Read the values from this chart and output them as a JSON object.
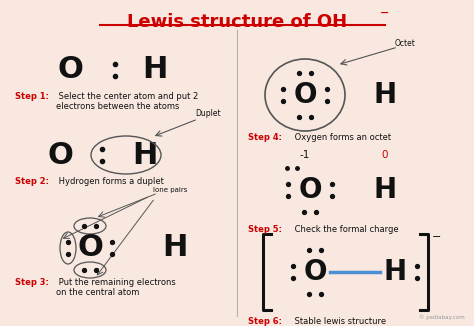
{
  "title": "Lewis structure of OH",
  "title_sup": "−",
  "bg": "#f8e8e0",
  "red": "#cc0000",
  "black": "#111111",
  "blue": "#4a8fd4",
  "gray": "#999999",
  "darkgray": "#555555",
  "copyright": "© pediabay.com",
  "step1_bold": "Step 1:",
  "step1_rest": " Select the center atom and put 2\nelectrons between the atoms",
  "step2_bold": "Step 2:",
  "step2_rest": " Hydrogen forms a duplet",
  "step3_bold": "Step 3:",
  "step3_rest": " Put the remaining electrons\non the central atom",
  "step4_bold": "Step 4:",
  "step4_rest": " Oxygen forms an octet",
  "step5_bold": "Step 5:",
  "step5_rest": " Check the formal charge",
  "step6_bold": "Step 6:",
  "step6_rest": " Stable lewis structure"
}
